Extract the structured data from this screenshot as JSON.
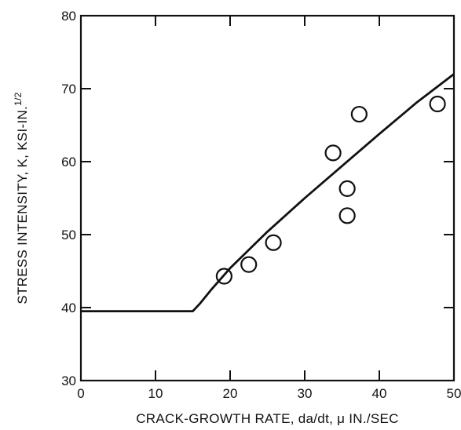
{
  "chart_data": {
    "type": "scatter",
    "xlabel": "CRACK-GROWTH RATE, da/dt, μ IN./SEC",
    "ylabel": "STRESS INTENSITY, K, KSI-IN.",
    "ylabel_superscript": "1/2",
    "xlim": [
      0,
      50
    ],
    "ylim": [
      30,
      80
    ],
    "x_ticks": [
      0,
      10,
      20,
      30,
      40,
      50
    ],
    "y_ticks": [
      30,
      40,
      50,
      60,
      70,
      80
    ],
    "x_tick_labels": [
      "0",
      "10",
      "20",
      "30",
      "40",
      "50"
    ],
    "y_tick_labels": [
      "30",
      "40",
      "50",
      "60",
      "70",
      "80"
    ],
    "grid": false,
    "legend": "none",
    "points": [
      {
        "x": 19.2,
        "y": 44.3
      },
      {
        "x": 22.5,
        "y": 45.9
      },
      {
        "x": 25.8,
        "y": 48.9
      },
      {
        "x": 33.8,
        "y": 61.2
      },
      {
        "x": 35.7,
        "y": 56.3
      },
      {
        "x": 35.7,
        "y": 52.6
      },
      {
        "x": 37.3,
        "y": 66.5
      },
      {
        "x": 47.8,
        "y": 67.9
      }
    ],
    "fit_line": {
      "x": [
        0,
        15,
        16,
        17.5,
        20,
        25,
        30,
        35,
        40,
        45,
        50
      ],
      "y": [
        39.5,
        39.5,
        40.6,
        42.5,
        45.4,
        50.4,
        55.0,
        59.4,
        63.8,
        68.1,
        72.0
      ]
    }
  }
}
